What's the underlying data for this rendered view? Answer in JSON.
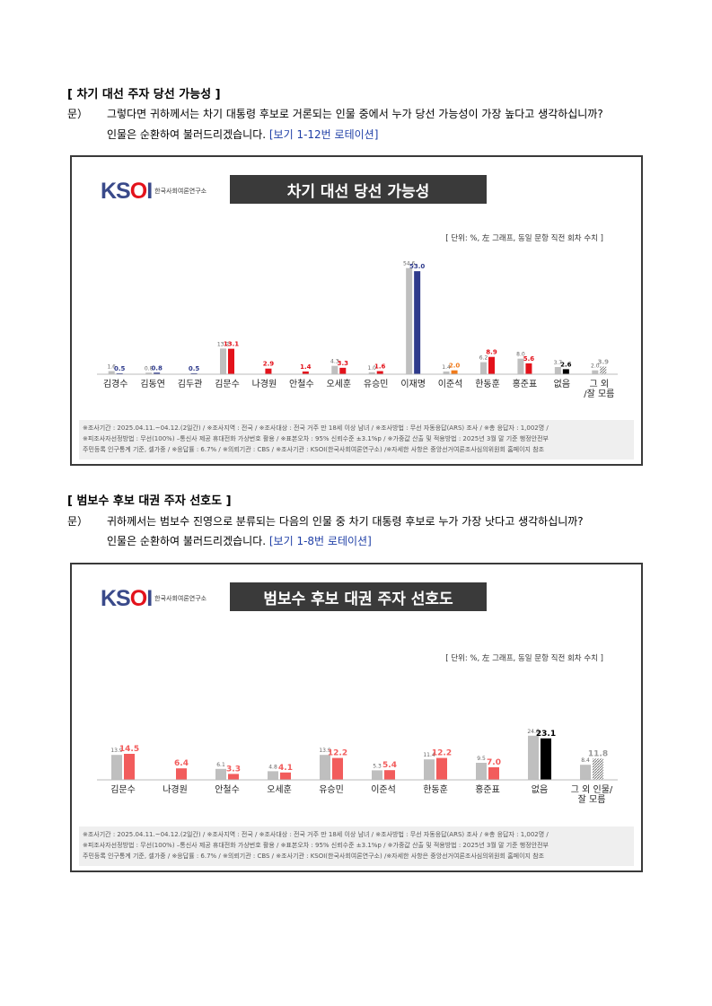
{
  "section1": {
    "title": "[ 차기 대선 주자 당선 가능성 ]",
    "q_mark": "문）",
    "q_line1": "그렇다면 귀하께서는 차기 대통령 후보로 거론되는 인물 중에서 누가 당선 가능성이 가장 높다고 생각하십니까?",
    "q_line2_prefix": "인물은 순환하여 불러드리겠습니다.",
    "q_line2_note": "[보기 1-12번 로테이션]"
  },
  "section2": {
    "title": "[ 범보수 후보 대권 주자 선호도 ]",
    "q_mark": "문）",
    "q_line1": "귀하께서는 범보수 진영으로 분류되는 다음의 인물 중 차기 대통령 후보로 누가 가장 낫다고 생각하십니까?",
    "q_line2_prefix": "인물은 순환하여 불러드리겠습니다.",
    "q_line2_note": "[보기 1-8번 로테이션]"
  },
  "logo": {
    "name_prefix": "KS",
    "name_o": "O",
    "name_suffix": "I",
    "sub": "한국사회여론연구소"
  },
  "unit_note": "[ 단위: %, 左 그래프, 동일 문항 직전 회차 수치 ]",
  "footnote": {
    "line1": "※조사기간 : 2025.04.11.~04.12.(2일간) / ※조사지역 : 전국 / ※조사대상 : 전국 거주 만 18세 이상 남녀 / ※조사방법 : 무선 자동응답(ARS) 조사 / ※총 응답자 : 1,002명 /",
    "line2": "※피조사자선정방법 : 무선(100%) –통신사 제공 휴대전화 가상번호 활용 / ※표본오차 : 95% 신뢰수준 ±3.1%p / ※가중값 산출 및 적용방법 : 2025년 3월 말 기준 행정안전부",
    "line3": "주민등록 인구통계 기준, 셀가중 / ※응답률 : 6.7% / ※의뢰기관 : CBS / ※조사기관 : KSOI(한국사회여론연구소) /※자세한 사항은 중앙선거여론조사심의위원회 홈페이지 참조"
  },
  "chart_data": [
    {
      "type": "bar",
      "title": "차기 대선 당선 가능성",
      "categories": [
        "김경수",
        "김동연",
        "김두관",
        "김문수",
        "나경원",
        "안철수",
        "오세훈",
        "유승민",
        "이재명",
        "이준석",
        "한동훈",
        "홍준표",
        "없음",
        "그 외\n/잘 모름"
      ],
      "series": [
        {
          "values": [
            1.6,
            0.8,
            null,
            13.2,
            null,
            null,
            4.3,
            1.0,
            54.6,
            1.4,
            6.2,
            8.0,
            3.7,
            2.0
          ],
          "color": "#bfbfbf"
        },
        {
          "values": [
            0.5,
            0.8,
            0.5,
            13.1,
            2.9,
            1.4,
            3.3,
            1.6,
            53.0,
            2.0,
            8.9,
            5.6,
            2.6,
            3.9
          ],
          "colors": [
            "#2e3a8c",
            "#2e3a8c",
            "#2e3a8c",
            "#e3121b",
            "#e3121b",
            "#e3121b",
            "#e3121b",
            "#e3121b",
            "#2e3a8c",
            "#f07a1a",
            "#e3121b",
            "#e3121b",
            "#000000",
            "hatch"
          ]
        }
      ],
      "ylim": [
        0,
        60
      ]
    },
    {
      "type": "bar",
      "title": "범보수 후보 대권 주자 선호도",
      "categories": [
        "김문수",
        "나경원",
        "안철수",
        "오세훈",
        "유승민",
        "이준석",
        "한동훈",
        "홍준표",
        "없음",
        "그 외 인물/\n잘 모름"
      ],
      "series": [
        {
          "values": [
            13.9,
            null,
            6.1,
            4.8,
            13.9,
            5.3,
            11.4,
            9.5,
            24.6,
            8.4
          ],
          "color": "#bfbfbf"
        },
        {
          "values": [
            14.5,
            6.4,
            3.3,
            4.1,
            12.2,
            5.4,
            12.2,
            7.0,
            23.1,
            11.8
          ],
          "colors": [
            "#f25c5c",
            "#f25c5c",
            "#f25c5c",
            "#f25c5c",
            "#f25c5c",
            "#f25c5c",
            "#f25c5c",
            "#f25c5c",
            "#000000",
            "hatch"
          ]
        }
      ],
      "ylim": [
        0,
        30
      ]
    }
  ]
}
